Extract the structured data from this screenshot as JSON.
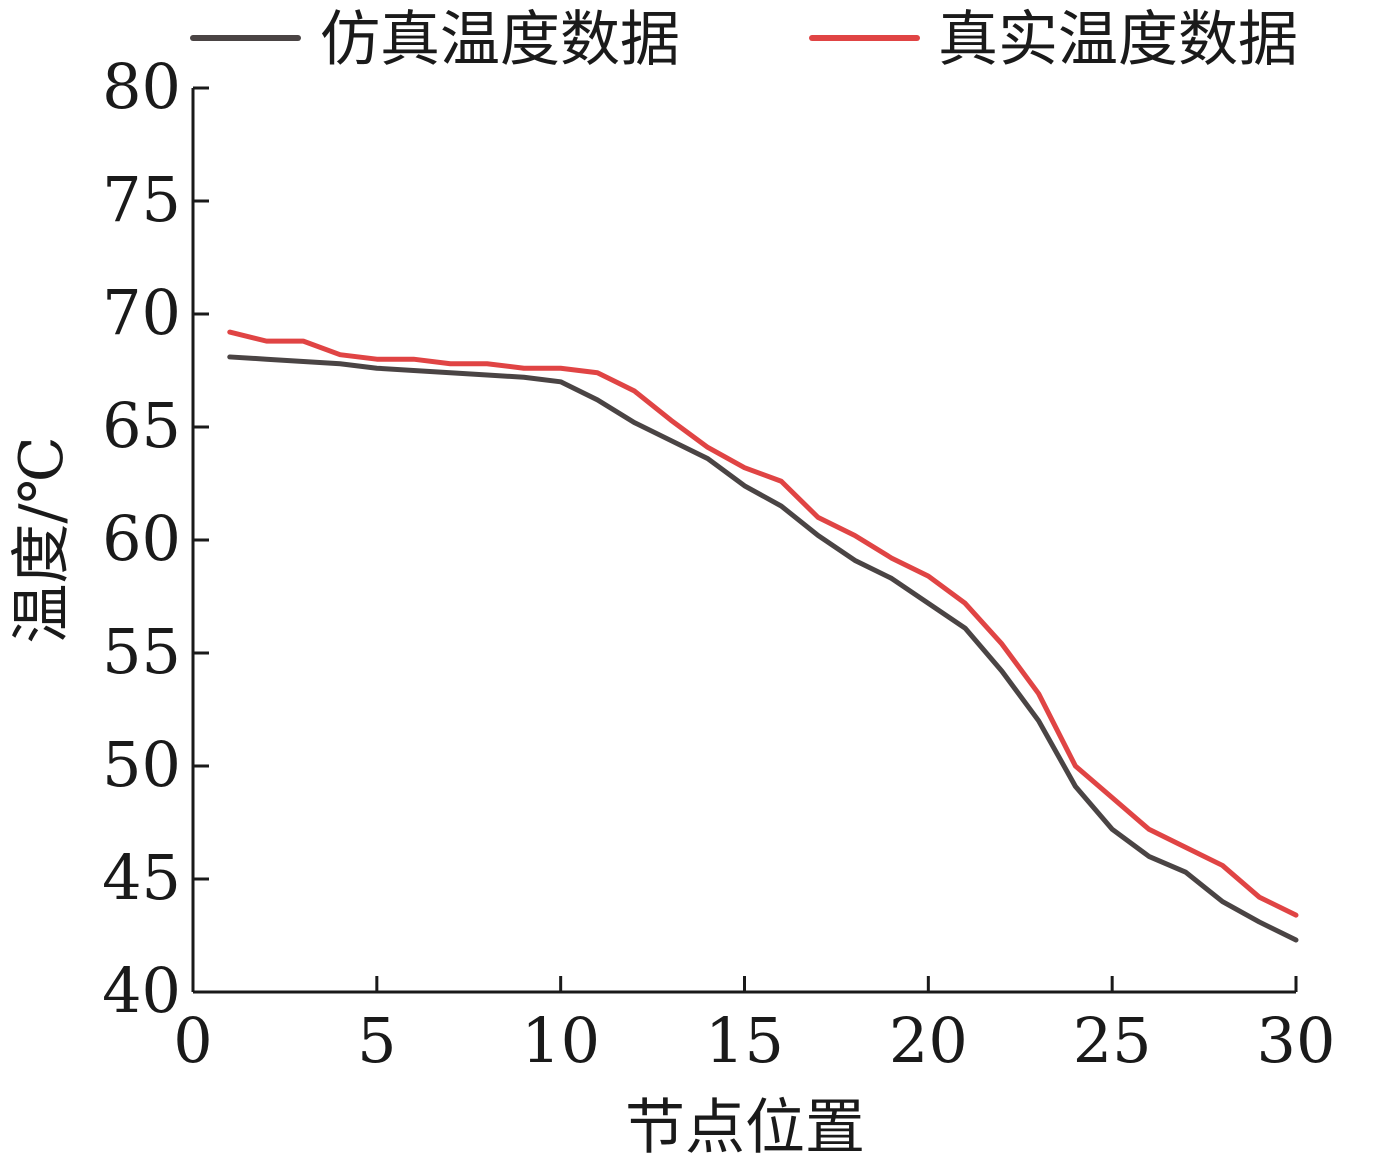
{
  "chart_data": {
    "type": "line",
    "title": "",
    "xlabel": "节点位置",
    "ylabel": "温度/℃",
    "xlim": [
      0,
      30
    ],
    "ylim": [
      40,
      80
    ],
    "xticks": [
      0,
      5,
      10,
      15,
      20,
      25,
      30
    ],
    "yticks": [
      40,
      45,
      50,
      55,
      60,
      65,
      70,
      75,
      80
    ],
    "grid": false,
    "legend_position": "top",
    "x": [
      1,
      2,
      3,
      4,
      5,
      6,
      7,
      8,
      9,
      10,
      11,
      12,
      13,
      14,
      15,
      16,
      17,
      18,
      19,
      20,
      21,
      22,
      23,
      24,
      25,
      26,
      27,
      28,
      29,
      30
    ],
    "series": [
      {
        "name": "仿真温度数据",
        "color": "#4a4444",
        "values": [
          68.1,
          68.0,
          67.9,
          67.8,
          67.6,
          67.5,
          67.4,
          67.3,
          67.2,
          67.0,
          66.2,
          65.2,
          64.4,
          63.6,
          62.4,
          61.5,
          60.2,
          59.1,
          58.3,
          57.2,
          56.1,
          54.2,
          52.0,
          49.1,
          47.2,
          46.0,
          45.3,
          44.0,
          43.1,
          42.3
        ]
      },
      {
        "name": "真实温度数据",
        "color": "#e04444",
        "values": [
          69.2,
          68.8,
          68.8,
          68.2,
          68.0,
          68.0,
          67.8,
          67.8,
          67.6,
          67.6,
          67.4,
          66.6,
          65.3,
          64.1,
          63.2,
          62.6,
          61.0,
          60.2,
          59.2,
          58.4,
          57.2,
          55.4,
          53.2,
          50.0,
          48.6,
          47.2,
          46.4,
          45.6,
          44.2,
          43.4
        ]
      }
    ]
  }
}
